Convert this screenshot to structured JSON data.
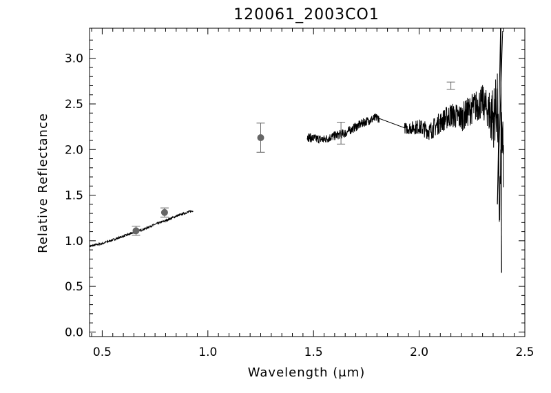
{
  "chart_data": {
    "type": "scatter",
    "title": "120061_2003CO1",
    "xlabel": "Wavelength (μm)",
    "ylabel": "Relative Reflectance",
    "xlim": [
      0.44,
      2.5
    ],
    "ylim": [
      -0.05,
      3.33
    ],
    "xticks": [
      0.5,
      1.0,
      1.5,
      2.0,
      2.5
    ],
    "yticks": [
      0.0,
      0.5,
      1.0,
      1.5,
      2.0,
      2.5,
      3.0
    ],
    "xtick_labels": [
      "0.5",
      "1.0",
      "1.5",
      "2.0",
      "2.5"
    ],
    "ytick_labels": [
      "0.0",
      "0.5",
      "1.0",
      "1.5",
      "2.0",
      "2.5",
      "3.0"
    ],
    "grid": false,
    "legend": "none",
    "series": [
      {
        "type": "line",
        "color": "#000000",
        "x": [
          0.44,
          0.5,
          0.55,
          0.6,
          0.65,
          0.7,
          0.75,
          0.8,
          0.85,
          0.9,
          0.93
        ],
        "y": [
          0.94,
          0.97,
          1.01,
          1.05,
          1.09,
          1.13,
          1.18,
          1.22,
          1.27,
          1.31,
          1.33
        ]
      },
      {
        "type": "line",
        "color": "#000000",
        "x": [
          1.47,
          1.5,
          1.55,
          1.6,
          1.65,
          1.7,
          1.75,
          1.8,
          1.94,
          2.0,
          2.05,
          2.1,
          2.15,
          2.2,
          2.25,
          2.3,
          2.35,
          2.37,
          2.38,
          2.39,
          2.4
        ],
        "y": [
          2.14,
          2.12,
          2.11,
          2.15,
          2.18,
          2.25,
          2.31,
          2.35,
          2.23,
          2.25,
          2.2,
          2.3,
          2.38,
          2.35,
          2.45,
          2.52,
          2.35,
          2.5,
          1.3,
          2.2,
          1.8
        ]
      },
      {
        "type": "errorbar",
        "color": "#666666",
        "x": [
          0.66,
          0.795,
          1.25,
          1.63,
          2.15
        ],
        "y": [
          1.11,
          1.31,
          2.13,
          2.18,
          2.7
        ],
        "yerr": [
          0.05,
          0.05,
          0.16,
          0.12,
          0.04
        ],
        "marker_visible": [
          true,
          true,
          true,
          false,
          false
        ]
      }
    ]
  }
}
